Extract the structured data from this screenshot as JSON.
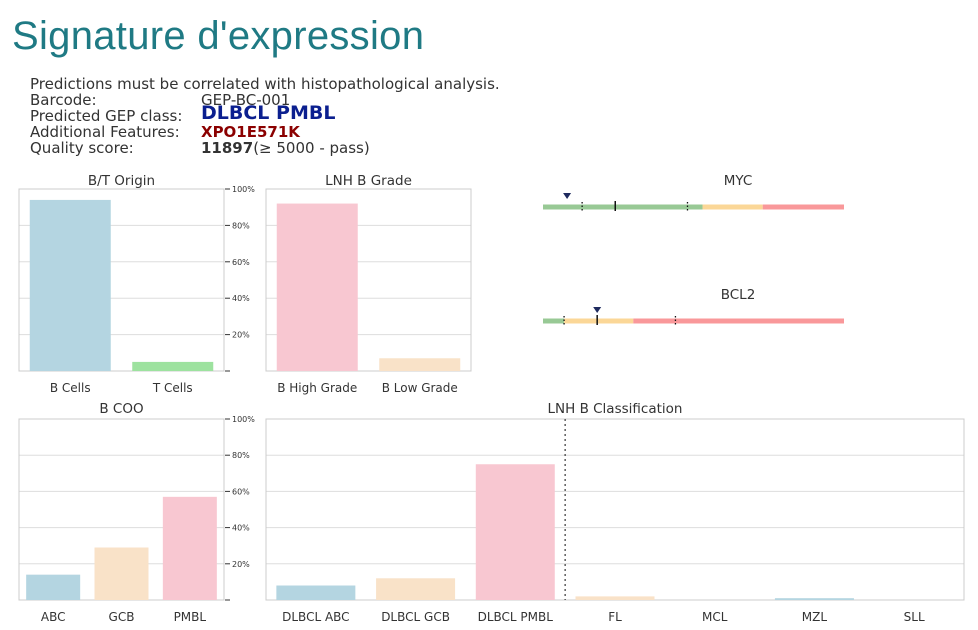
{
  "page_title": "Signature d'expression",
  "note": "Predictions must be correlated with histopathological analysis.",
  "info": {
    "barcode_label": "Barcode:",
    "barcode_value": "GEP-BC-001",
    "gep_label": "Predicted GEP class:",
    "gep_value": "DLBCL PMBL",
    "features_label": "Additional Features:",
    "features_value": "XPO1E571K",
    "quality_label": "Quality score:",
    "quality_value": "11897",
    "quality_suffix": "(≥ 5000 - pass)"
  },
  "colors": {
    "title": "#1f7a84",
    "blue": "#b4d5e1",
    "green": "#9de29f",
    "pink": "#f8c7d1",
    "peach": "#f9e2c8",
    "track_green": "#98c995",
    "track_orange": "#fbd797",
    "track_red": "#f9989a",
    "marker": "#1e2a5e"
  },
  "chart_data": [
    {
      "id": "bt",
      "type": "bar",
      "title": "B/T Origin",
      "categories": [
        "B Cells",
        "T Cells"
      ],
      "values": [
        94,
        5
      ],
      "colors": [
        "#b4d5e1",
        "#9de29f"
      ],
      "ylim": [
        0,
        100
      ],
      "yticks": [
        20,
        40,
        60,
        80,
        100
      ],
      "ytick_labels": [
        "20%",
        "40%",
        "60%",
        "80%",
        "100%"
      ],
      "grid": true
    },
    {
      "id": "grade",
      "type": "bar",
      "title": "LNH B Grade",
      "categories": [
        "B High Grade",
        "B Low Grade"
      ],
      "values": [
        92,
        7
      ],
      "colors": [
        "#f8c7d1",
        "#f9e2c8"
      ],
      "ylim": [
        0,
        100
      ],
      "yticks": [
        20,
        40,
        60,
        80,
        100
      ],
      "grid": true
    },
    {
      "id": "coo",
      "type": "bar",
      "title": "B COO",
      "categories": [
        "ABC",
        "GCB",
        "PMBL"
      ],
      "values": [
        14,
        29,
        57
      ],
      "colors": [
        "#b4d5e1",
        "#f9e2c8",
        "#f8c7d1"
      ],
      "ylim": [
        0,
        100
      ],
      "yticks": [
        20,
        40,
        60,
        80,
        100
      ],
      "ytick_labels": [
        "20%",
        "40%",
        "60%",
        "80%",
        "100%"
      ],
      "grid": true
    },
    {
      "id": "class",
      "type": "bar",
      "title": "LNH B Classification",
      "categories": [
        "DLBCL ABC",
        "DLBCL GCB",
        "DLBCL PMBL",
        "FL",
        "MCL",
        "MZL",
        "SLL"
      ],
      "values": [
        8,
        12,
        75,
        2,
        0,
        1,
        0
      ],
      "colors": [
        "#b4d5e1",
        "#f9e2c8",
        "#f8c7d1",
        "#f9e2c8",
        "#f8c7d1",
        "#b4d5e1",
        "#f9e2c8"
      ],
      "ylim": [
        0,
        100
      ],
      "yticks": [
        20,
        40,
        60,
        80,
        100
      ],
      "divider_after_index": 2,
      "grid": true
    },
    {
      "id": "myc",
      "type": "gauge",
      "title": "MYC",
      "segments": [
        {
          "from": 0,
          "to": 53,
          "color": "#98c995"
        },
        {
          "from": 53,
          "to": 73,
          "color": "#fbd797"
        },
        {
          "from": 73,
          "to": 100,
          "color": "#f9989a"
        }
      ],
      "marker": 8,
      "ticks": [
        {
          "at": 13,
          "style": "dotted"
        },
        {
          "at": 24,
          "style": "solid"
        },
        {
          "at": 48,
          "style": "dotted"
        }
      ]
    },
    {
      "id": "bcl2",
      "type": "gauge",
      "title": "BCL2",
      "segments": [
        {
          "from": 0,
          "to": 7,
          "color": "#98c995"
        },
        {
          "from": 7,
          "to": 30,
          "color": "#fbd797"
        },
        {
          "from": 30,
          "to": 100,
          "color": "#f9989a"
        }
      ],
      "marker": 18,
      "ticks": [
        {
          "at": 7,
          "style": "dotted"
        },
        {
          "at": 18,
          "style": "solid"
        },
        {
          "at": 44,
          "style": "dotted"
        }
      ]
    }
  ]
}
